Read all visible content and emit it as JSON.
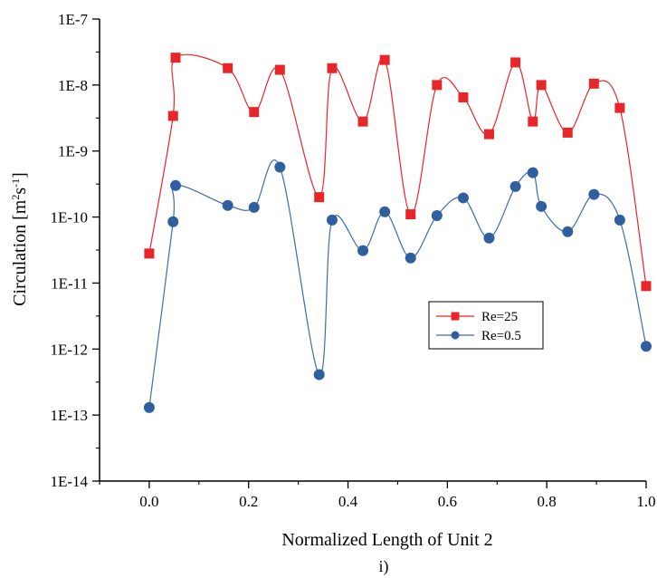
{
  "chart_data": {
    "type": "line",
    "title": "",
    "xlabel": "Normalized Length of Unit 2",
    "ylabel": "Circulation [m²s⁻¹]",
    "ylabel_parts": {
      "main": "Circulation [m",
      "sup1": "2",
      "mid": "s",
      "sup2": "-1",
      "end": "]"
    },
    "caption": "i)",
    "xlim": [
      -0.1,
      1.0
    ],
    "ylim_exp": [
      -14,
      -7
    ],
    "y_scale": "log",
    "x_ticks": [
      0.0,
      0.2,
      0.4,
      0.6,
      0.8,
      1.0
    ],
    "x_tick_labels": [
      "0.0",
      "0.2",
      "0.4",
      "0.6",
      "0.8",
      "1.0"
    ],
    "y_tick_exps": [
      -14,
      -13,
      -12,
      -11,
      -10,
      -9,
      -8,
      -7
    ],
    "y_tick_labels": [
      "1E-14",
      "1E-13",
      "1E-12",
      "1E-11",
      "1E-10",
      "1E-9",
      "1E-8",
      "1E-7"
    ],
    "grid": false,
    "legend_position": "center-right",
    "series": [
      {
        "name": "Re=25",
        "marker": "square",
        "color": "#e8262a",
        "line_color": "#e8262a",
        "x": [
          0.0,
          0.048,
          0.053,
          0.158,
          0.211,
          0.263,
          0.342,
          0.368,
          0.43,
          0.474,
          0.526,
          0.579,
          0.632,
          0.684,
          0.737,
          0.772,
          0.789,
          0.842,
          0.895,
          0.947,
          1.0
        ],
        "y": [
          2.8e-11,
          3.4e-09,
          2.6e-08,
          1.8e-08,
          3.9e-09,
          1.7e-08,
          2e-10,
          1.8e-08,
          2.8e-09,
          2.4e-08,
          1.1e-10,
          1e-08,
          6.5e-09,
          1.8e-09,
          2.2e-08,
          2.8e-09,
          1e-08,
          1.9e-09,
          1.05e-08,
          4.5e-09,
          9e-12
        ]
      },
      {
        "name": "Re=0.5",
        "marker": "circle",
        "color": "#2f5f9e",
        "line_color": "#3d6ea8",
        "x": [
          0.0,
          0.048,
          0.053,
          0.158,
          0.211,
          0.263,
          0.342,
          0.368,
          0.43,
          0.474,
          0.526,
          0.579,
          0.632,
          0.684,
          0.737,
          0.772,
          0.789,
          0.842,
          0.895,
          0.947,
          1.0
        ],
        "y": [
          1.3e-13,
          8.5e-11,
          3e-10,
          1.5e-10,
          1.4e-10,
          5.7e-10,
          4.1e-13,
          9e-11,
          3.1e-11,
          1.2e-10,
          2.4e-11,
          1.05e-10,
          1.95e-10,
          4.8e-11,
          2.9e-10,
          4.7e-10,
          1.45e-10,
          6e-11,
          2.2e-10,
          9e-11,
          1.1e-12
        ]
      }
    ]
  }
}
